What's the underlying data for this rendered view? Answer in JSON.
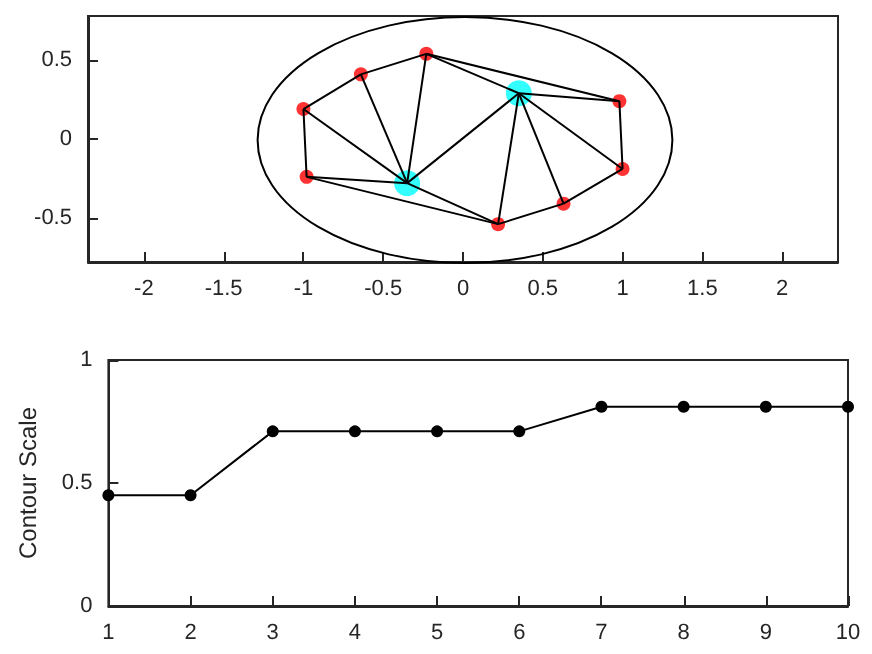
{
  "chart_data": [
    {
      "type": "scatter",
      "xlim": [
        -2.35,
        2.35
      ],
      "ylim": [
        -0.78,
        0.78
      ],
      "xticks": [
        -2,
        -1.5,
        -1,
        -0.5,
        0,
        0.5,
        1,
        1.5,
        2
      ],
      "yticks": [
        -0.5,
        0,
        0.5
      ],
      "series": [
        {
          "type": "line",
          "marker": "none",
          "color": "#000000",
          "x": [
            -1.0,
            -0.64
          ],
          "values": [
            0.19,
            0.41
          ]
        },
        {
          "type": "line",
          "marker": "none",
          "color": "#000000",
          "x": [
            -0.64,
            -0.23
          ],
          "values": [
            0.41,
            0.54
          ]
        },
        {
          "type": "line",
          "marker": "none",
          "color": "#000000",
          "x": [
            -0.23,
            0.35
          ],
          "values": [
            0.54,
            0.29
          ]
        },
        {
          "type": "line",
          "marker": "none",
          "color": "#000000",
          "x": [
            0.35,
            0.98
          ],
          "values": [
            0.29,
            0.24
          ]
        },
        {
          "type": "line",
          "marker": "none",
          "color": "#000000",
          "x": [
            0.98,
            1.0
          ],
          "values": [
            0.24,
            -0.19
          ]
        },
        {
          "type": "line",
          "marker": "none",
          "color": "#000000",
          "x": [
            0.63,
            1.0
          ],
          "values": [
            -0.41,
            -0.19
          ]
        },
        {
          "type": "line",
          "marker": "none",
          "color": "#000000",
          "x": [
            0.22,
            0.63
          ],
          "values": [
            -0.54,
            -0.41
          ]
        },
        {
          "type": "line",
          "marker": "none",
          "color": "#000000",
          "x": [
            -0.35,
            0.22
          ],
          "values": [
            -0.28,
            -0.54
          ]
        },
        {
          "type": "line",
          "marker": "none",
          "color": "#000000",
          "x": [
            -0.98,
            -0.35
          ],
          "values": [
            -0.24,
            -0.28
          ]
        },
        {
          "type": "line",
          "marker": "none",
          "color": "#000000",
          "x": [
            -1.0,
            -0.98
          ],
          "values": [
            0.19,
            -0.24
          ]
        },
        {
          "type": "line",
          "marker": "none",
          "color": "#000000",
          "x": [
            -1.0,
            -0.35
          ],
          "values": [
            0.19,
            -0.28
          ]
        },
        {
          "type": "line",
          "marker": "none",
          "color": "#000000",
          "x": [
            -0.35,
            0.35
          ],
          "values": [
            -0.28,
            0.29
          ]
        },
        {
          "type": "line",
          "marker": "none",
          "color": "#000000",
          "x": [
            0.35,
            1.0
          ],
          "values": [
            0.29,
            -0.19
          ]
        },
        {
          "type": "line",
          "marker": "none",
          "color": "#000000",
          "x": [
            -0.64,
            -0.35
          ],
          "values": [
            0.41,
            -0.28
          ]
        },
        {
          "type": "line",
          "marker": "none",
          "color": "#000000",
          "x": [
            -0.35,
            -0.23
          ],
          "values": [
            -0.28,
            0.54
          ]
        },
        {
          "type": "line",
          "marker": "none",
          "color": "#000000",
          "x": [
            -0.23,
            0.98
          ],
          "values": [
            0.54,
            0.24
          ]
        },
        {
          "type": "line",
          "marker": "none",
          "color": "#000000",
          "x": [
            0.35,
            0.63
          ],
          "values": [
            0.29,
            -0.41
          ]
        },
        {
          "type": "line",
          "marker": "none",
          "color": "#000000",
          "x": [
            0.22,
            0.35
          ],
          "values": [
            -0.54,
            0.29
          ]
        },
        {
          "type": "line",
          "marker": "none",
          "color": "#000000",
          "x": [
            -0.98,
            0.22
          ],
          "values": [
            -0.24,
            -0.54
          ]
        },
        {
          "type": "scatter",
          "marker": "circle",
          "color": "#ff0000",
          "x": [
            -1.0,
            -0.64,
            -0.23,
            0.98,
            1.0,
            0.63,
            0.22,
            -0.98
          ],
          "values": [
            0.19,
            0.41,
            0.54,
            0.24,
            -0.19,
            -0.41,
            -0.54,
            -0.24
          ]
        },
        {
          "type": "scatter",
          "marker": "circle",
          "color": "#00ffff",
          "x": [
            0.35,
            -0.35
          ],
          "values": [
            0.29,
            -0.28
          ],
          "sizes": [
            1,
            1
          ]
        }
      ]
    },
    {
      "type": "line",
      "ylabel": "Contour Scale",
      "x": [
        1,
        2,
        3,
        4,
        5,
        6,
        7,
        8,
        9,
        10
      ],
      "xlim": [
        1,
        10
      ],
      "xticks": [
        1,
        2,
        3,
        4,
        5,
        6,
        7,
        8,
        9,
        10
      ],
      "ylim": [
        0,
        1
      ],
      "yticks": [
        0,
        0.5,
        1
      ],
      "marker": "circle",
      "series": [
        {
          "color": "#000000",
          "values": [
            0.45,
            0.45,
            0.71,
            0.71,
            0.71,
            0.71,
            0.81,
            0.81,
            0.81,
            0.81
          ]
        }
      ]
    }
  ]
}
